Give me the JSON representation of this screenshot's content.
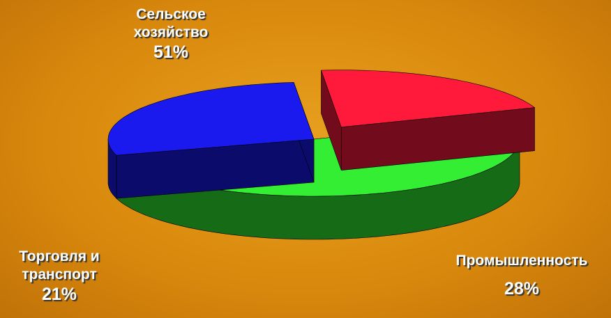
{
  "chart_data": {
    "type": "pie",
    "categories": [
      "Сельское хозяйство",
      "Промышленность",
      "Торговля и транспорт"
    ],
    "values": [
      51,
      28,
      21
    ],
    "value_labels": [
      "51%",
      "28%",
      "21%"
    ],
    "colors": [
      "#33ee33",
      "#1a1aee",
      "#ff1a3c"
    ],
    "explode": [
      0,
      0,
      0.25
    ],
    "three_d": true
  }
}
